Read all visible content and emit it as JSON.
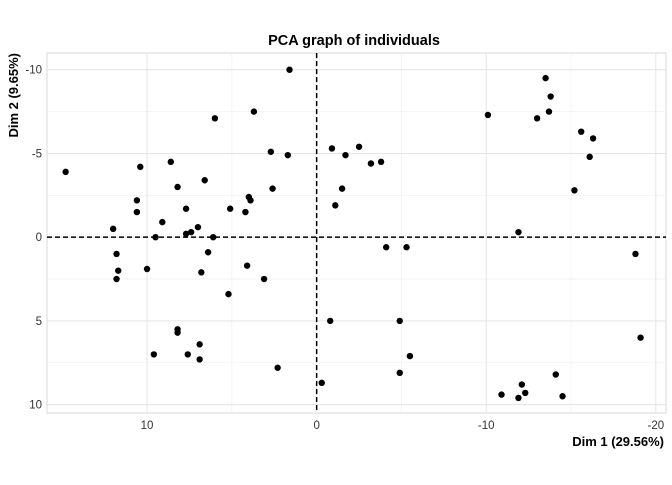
{
  "chart_data": {
    "type": "scatter",
    "title": "PCA graph of individuals",
    "xlabel": "Dim 1 (29.56%)",
    "ylabel": "Dim 2 (9.65%)",
    "x_reversed": true,
    "y_reversed": true,
    "xlim": [
      15.9,
      -20.6
    ],
    "ylim": [
      -11.0,
      10.5
    ],
    "x_ticks": [
      10,
      0,
      -10,
      -20
    ],
    "x_tick_labels": [
      "10",
      "0",
      "-10",
      "-20"
    ],
    "y_ticks": [
      -10,
      -5,
      0,
      5,
      10
    ],
    "y_tick_labels": [
      "-10",
      "-5",
      "0",
      "5",
      "10"
    ],
    "grid": true,
    "reference_lines": {
      "x": 0,
      "y": 0,
      "style": "dashed"
    },
    "point_color": "#000000",
    "points": [
      [
        14.8,
        -3.9
      ],
      [
        12.0,
        -0.5
      ],
      [
        11.8,
        1.0
      ],
      [
        11.7,
        2.0
      ],
      [
        11.8,
        2.5
      ],
      [
        10.6,
        -2.2
      ],
      [
        10.6,
        -1.5
      ],
      [
        10.4,
        -4.2
      ],
      [
        10.0,
        1.9
      ],
      [
        9.5,
        0.0
      ],
      [
        9.1,
        -0.9
      ],
      [
        8.6,
        -4.5
      ],
      [
        8.2,
        5.5
      ],
      [
        8.2,
        5.7
      ],
      [
        8.2,
        -3.0
      ],
      [
        7.7,
        -1.7
      ],
      [
        7.7,
        -0.2
      ],
      [
        7.4,
        -0.3
      ],
      [
        7.0,
        -0.6
      ],
      [
        6.8,
        2.1
      ],
      [
        6.6,
        -3.4
      ],
      [
        6.4,
        0.9
      ],
      [
        6.1,
        0.0
      ],
      [
        6.0,
        -7.1
      ],
      [
        5.1,
        -1.7
      ],
      [
        5.2,
        3.4
      ],
      [
        4.2,
        -1.5
      ],
      [
        4.0,
        -2.4
      ],
      [
        3.9,
        -2.2
      ],
      [
        3.7,
        -7.5
      ],
      [
        3.1,
        2.5
      ],
      [
        2.7,
        -5.1
      ],
      [
        2.6,
        -2.9
      ],
      [
        1.7,
        -4.9
      ],
      [
        1.6,
        -10.0
      ],
      [
        2.3,
        7.8
      ],
      [
        9.6,
        7.0
      ],
      [
        7.6,
        7.0
      ],
      [
        6.9,
        6.4
      ],
      [
        6.9,
        7.3
      ],
      [
        4.1,
        1.7
      ],
      [
        -0.3,
        8.7
      ],
      [
        -0.8,
        5.0
      ],
      [
        -0.9,
        -5.3
      ],
      [
        -1.1,
        -1.9
      ],
      [
        -1.5,
        -2.9
      ],
      [
        -1.7,
        -4.9
      ],
      [
        -2.5,
        -5.4
      ],
      [
        -3.2,
        -4.4
      ],
      [
        -3.8,
        -4.5
      ],
      [
        -4.1,
        0.6
      ],
      [
        -4.9,
        5.0
      ],
      [
        -5.3,
        0.6
      ],
      [
        -5.5,
        7.1
      ],
      [
        -4.9,
        8.1
      ],
      [
        -10.1,
        -7.3
      ],
      [
        -10.9,
        9.4
      ],
      [
        -11.9,
        -0.3
      ],
      [
        -11.9,
        9.6
      ],
      [
        -12.1,
        8.8
      ],
      [
        -12.3,
        9.3
      ],
      [
        -13.0,
        -7.1
      ],
      [
        -13.5,
        -9.5
      ],
      [
        -13.7,
        -7.5
      ],
      [
        -13.8,
        -8.4
      ],
      [
        -14.1,
        8.2
      ],
      [
        -14.5,
        9.5
      ],
      [
        -15.2,
        -2.8
      ],
      [
        -15.6,
        -6.3
      ],
      [
        -16.1,
        -4.8
      ],
      [
        -16.3,
        -5.9
      ],
      [
        -18.8,
        1.0
      ],
      [
        -19.1,
        6.0
      ]
    ]
  }
}
